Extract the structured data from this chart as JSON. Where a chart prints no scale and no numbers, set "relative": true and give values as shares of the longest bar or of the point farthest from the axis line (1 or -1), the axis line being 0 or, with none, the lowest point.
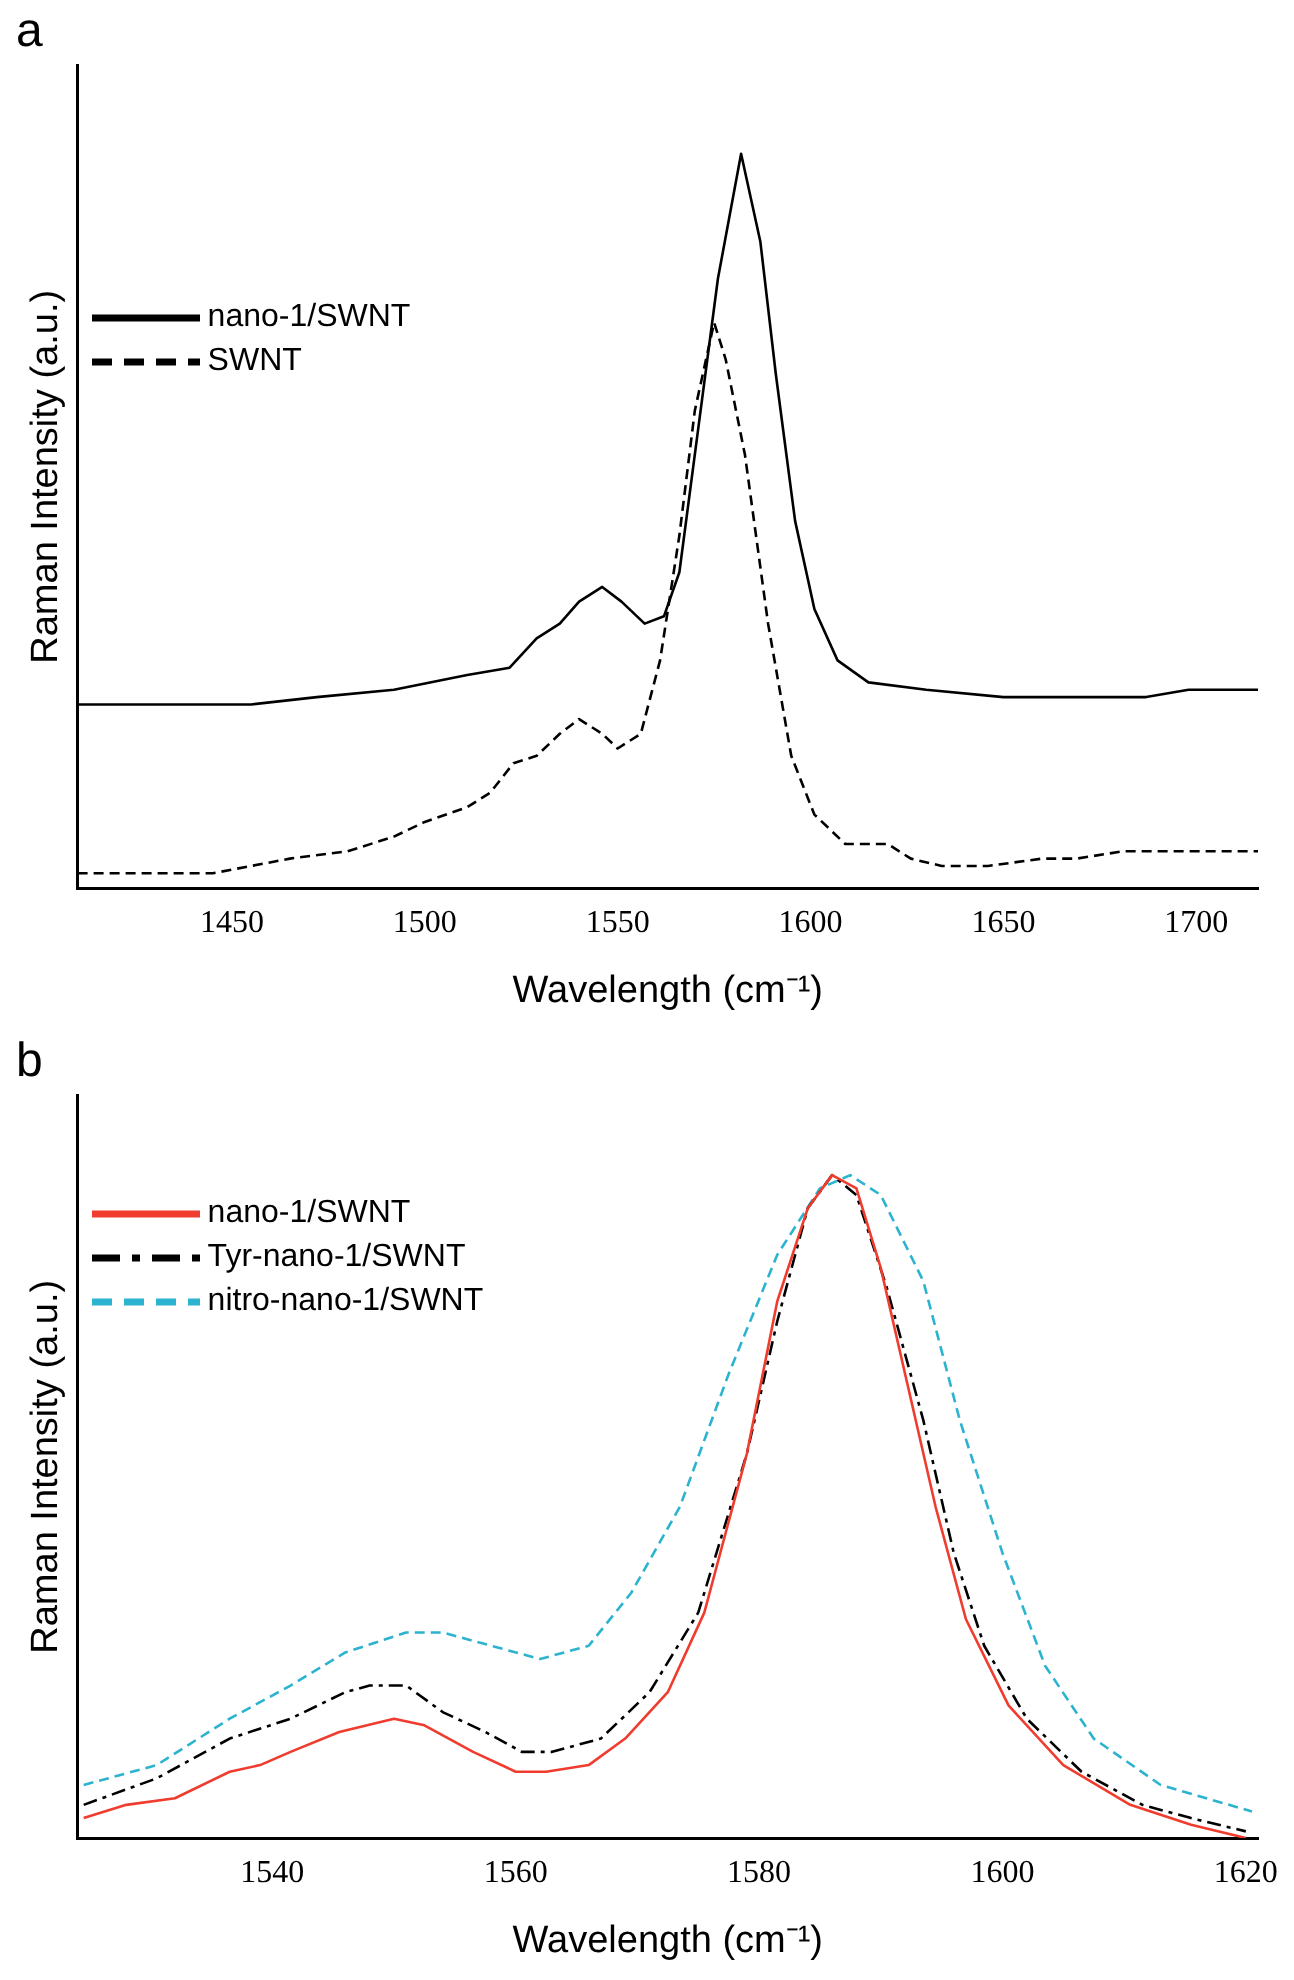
{
  "chart_data": [
    {
      "type": "line",
      "title": "a",
      "xlabel": "Wavelength (cm⁻¹)",
      "ylabel": "Raman Intensity (a.u.)",
      "relative": true,
      "xlim": [
        1410,
        1716
      ],
      "xticks": [
        1450,
        1500,
        1550,
        1600,
        1650,
        1700
      ],
      "grid": false,
      "legend": "top left",
      "marker": "none",
      "series": [
        {
          "name": "nano-1/SWNT",
          "color": "#000000",
          "line_style": "solid",
          "x": [
            1410,
            1455,
            1472,
            1492,
            1511,
            1522,
            1529,
            1535,
            1540,
            1546,
            1551,
            1557,
            1562,
            1566,
            1571,
            1576,
            1582,
            1587,
            1591,
            1596,
            1601,
            1607,
            1615,
            1630,
            1650,
            1667,
            1687,
            1698,
            1716
          ],
          "values": [
            0.25,
            0.25,
            0.26,
            0.27,
            0.29,
            0.3,
            0.34,
            0.36,
            0.39,
            0.41,
            0.39,
            0.36,
            0.37,
            0.43,
            0.63,
            0.83,
            1,
            0.88,
            0.7,
            0.5,
            0.38,
            0.31,
            0.28,
            0.27,
            0.26,
            0.26,
            0.26,
            0.27,
            0.27
          ]
        },
        {
          "name": "SWNT",
          "color": "#000000",
          "line_style": "dashed",
          "x": [
            1410,
            1424,
            1445,
            1465,
            1480,
            1492,
            1500,
            1511,
            1517,
            1523,
            1529,
            1535,
            1540,
            1546,
            1550,
            1556,
            1561,
            1566,
            1570,
            1575,
            1578,
            1583,
            1589,
            1595,
            1601,
            1609,
            1620,
            1626,
            1634,
            1646,
            1660,
            1669,
            1681,
            1692,
            1716
          ],
          "values": [
            0.02,
            0.02,
            0.02,
            0.04,
            0.05,
            0.07,
            0.09,
            0.11,
            0.13,
            0.17,
            0.18,
            0.21,
            0.23,
            0.21,
            0.19,
            0.21,
            0.31,
            0.48,
            0.65,
            0.77,
            0.72,
            0.59,
            0.36,
            0.18,
            0.1,
            0.06,
            0.06,
            0.04,
            0.03,
            0.03,
            0.04,
            0.04,
            0.05,
            0.05,
            0.05
          ]
        }
      ]
    },
    {
      "type": "line",
      "title": "b",
      "xlabel": "Wavelength (cm⁻¹)",
      "ylabel": "Raman Intensity (a.u.)",
      "relative": true,
      "xlim": [
        1524,
        1621
      ],
      "xticks": [
        1540,
        1560,
        1580,
        1600,
        1620
      ],
      "grid": false,
      "legend": "top left",
      "marker": "none",
      "series": [
        {
          "name": "nano-1/SWNT",
          "color": "#f03c2e",
          "line_style": "solid",
          "x": [
            1524.5,
            1528,
            1532,
            1536.5,
            1539,
            1541.5,
            1545.5,
            1550,
            1552.5,
            1556.5,
            1560,
            1562.5,
            1566,
            1569,
            1572.5,
            1575.5,
            1579,
            1581.5,
            1584,
            1586,
            1588,
            1590,
            1592,
            1594.5,
            1597,
            1600.5,
            1605,
            1610.5,
            1615.5,
            1620
          ],
          "values": [
            0.03,
            0.05,
            0.06,
            0.1,
            0.11,
            0.13,
            0.16,
            0.18,
            0.17,
            0.13,
            0.1,
            0.1,
            0.11,
            0.15,
            0.22,
            0.34,
            0.58,
            0.81,
            0.95,
            1,
            0.98,
            0.86,
            0.7,
            0.5,
            0.33,
            0.2,
            0.11,
            0.05,
            0.02,
            0
          ]
        },
        {
          "name": "Tyr-nano-1/SWNT",
          "color": "#000000",
          "line_style": "dashdot",
          "x": [
            1524.5,
            1530.5,
            1536.5,
            1541.5,
            1546,
            1548,
            1551,
            1554,
            1557.5,
            1560.5,
            1563,
            1567,
            1571,
            1575,
            1579,
            1581.5,
            1584,
            1586,
            1588,
            1590.5,
            1593.5,
            1596,
            1598.5,
            1602,
            1606.5,
            1611.5,
            1615.5,
            1620
          ],
          "values": [
            0.05,
            0.09,
            0.15,
            0.18,
            0.22,
            0.23,
            0.23,
            0.19,
            0.16,
            0.13,
            0.13,
            0.15,
            0.22,
            0.34,
            0.58,
            0.78,
            0.95,
            1,
            0.97,
            0.83,
            0.63,
            0.43,
            0.29,
            0.18,
            0.1,
            0.05,
            0.03,
            0.01
          ]
        },
        {
          "name": "nitro-nano-1/SWNT",
          "color": "#2bb3cf",
          "line_style": "dashed",
          "x": [
            1524.5,
            1530.5,
            1536.5,
            1541.5,
            1546,
            1551,
            1554,
            1558,
            1562,
            1566,
            1569.5,
            1573.5,
            1577.5,
            1581.5,
            1585,
            1587.5,
            1590,
            1593.5,
            1596.5,
            1600,
            1603.5,
            1607.5,
            1613,
            1620.5
          ],
          "values": [
            0.08,
            0.11,
            0.18,
            0.23,
            0.28,
            0.31,
            0.31,
            0.29,
            0.27,
            0.29,
            0.37,
            0.5,
            0.7,
            0.88,
            0.98,
            1,
            0.97,
            0.84,
            0.63,
            0.43,
            0.26,
            0.15,
            0.08,
            0.04
          ]
        }
      ]
    }
  ]
}
